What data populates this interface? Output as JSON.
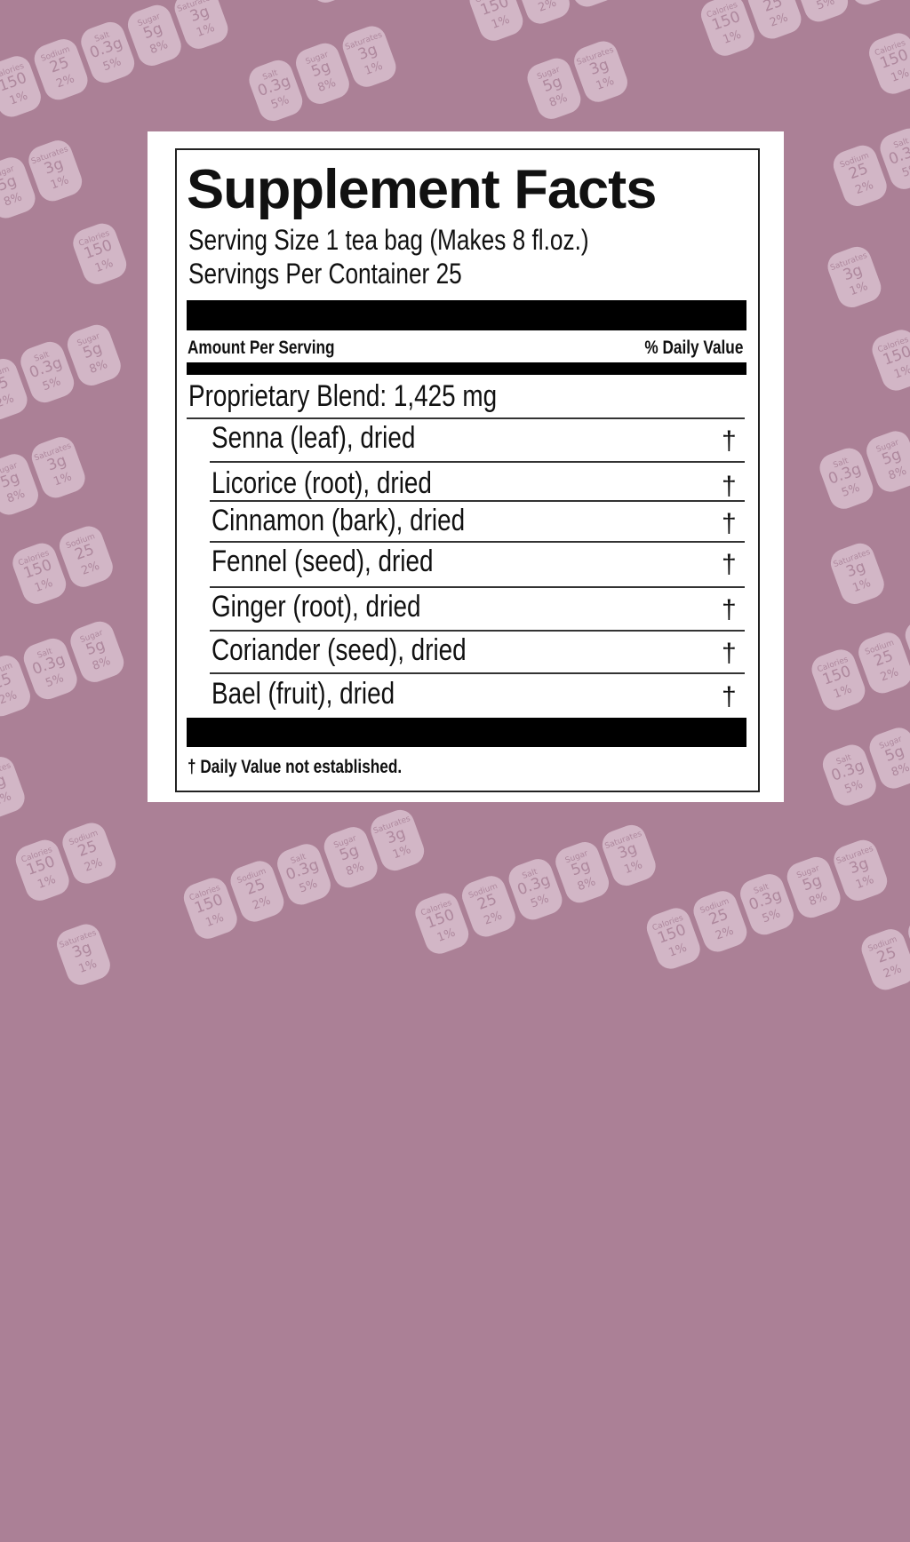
{
  "background_pattern": {
    "badges": [
      {
        "name": "Calories",
        "value": "150",
        "percent": "1%"
      },
      {
        "name": "Sodium",
        "value": "25",
        "percent": "2%"
      },
      {
        "name": "Salt",
        "value": "0.3g",
        "percent": "5%"
      },
      {
        "name": "Sugar",
        "value": "5g",
        "percent": "8%"
      },
      {
        "name": "Saturates",
        "value": "3g",
        "percent": "1%"
      }
    ],
    "colors": {
      "background": "#ab8096",
      "badge": "#d2b6c6",
      "badge_text": "#ae889d"
    }
  },
  "label": {
    "title": "Supplement Facts",
    "serving_size": "Serving Size 1 tea bag (Makes 8 fl.oz.)",
    "servings_per_container": "Servings Per Container 25",
    "amount_header": "Amount Per Serving",
    "dv_header": "% Daily Value",
    "blend": "Proprietary Blend: 1,425 mg",
    "ingredients": [
      {
        "name": "Senna (leaf), dried",
        "dv": "†"
      },
      {
        "name": "Licorice (root), dried",
        "dv": "†"
      },
      {
        "name": "Cinnamon (bark), dried",
        "dv": "†"
      },
      {
        "name": "Fennel (seed), dried",
        "dv": "†"
      },
      {
        "name": "Ginger (root), dried",
        "dv": "†"
      },
      {
        "name": "Coriander (seed), dried",
        "dv": "†"
      },
      {
        "name": "Bael (fruit), dried",
        "dv": "†"
      }
    ],
    "footnote": "† Daily Value not established."
  }
}
